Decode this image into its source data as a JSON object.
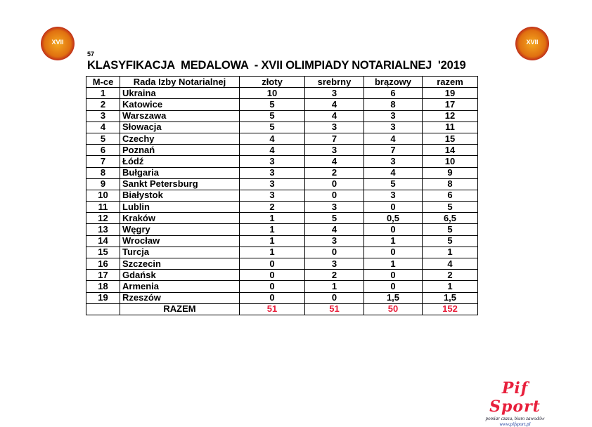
{
  "logo_text": "XVII",
  "page_number": "57",
  "title": "KLASYFIKACJA  MEDALOWA  - XVII OLIMPIADY NOTARIALNEJ  '2019",
  "headers": [
    "M-ce",
    "Rada Izby Notarialnej",
    "złoty",
    "srebrny",
    "brązowy",
    "razem"
  ],
  "rows": [
    [
      "1",
      "Ukraina",
      "10",
      "3",
      "6",
      "19"
    ],
    [
      "2",
      "Katowice",
      "5",
      "4",
      "8",
      "17"
    ],
    [
      "3",
      "Warszawa",
      "5",
      "4",
      "3",
      "12"
    ],
    [
      "4",
      "Słowacja",
      "5",
      "3",
      "3",
      "11"
    ],
    [
      "5",
      "Czechy",
      "4",
      "7",
      "4",
      "15"
    ],
    [
      "6",
      "Poznań",
      "4",
      "3",
      "7",
      "14"
    ],
    [
      "7",
      "Łódź",
      "3",
      "4",
      "3",
      "10"
    ],
    [
      "8",
      "Bułgaria",
      "3",
      "2",
      "4",
      "9"
    ],
    [
      "9",
      "Sankt Petersburg",
      "3",
      "0",
      "5",
      "8"
    ],
    [
      "10",
      "Białystok",
      "3",
      "0",
      "3",
      "6"
    ],
    [
      "11",
      "Lublin",
      "2",
      "3",
      "0",
      "5"
    ],
    [
      "12",
      "Kraków",
      "1",
      "5",
      "0,5",
      "6,5"
    ],
    [
      "13",
      "Węgry",
      "1",
      "4",
      "0",
      "5"
    ],
    [
      "14",
      "Wrocław",
      "1",
      "3",
      "1",
      "5"
    ],
    [
      "15",
      "Turcja",
      "1",
      "0",
      "0",
      "1"
    ],
    [
      "16",
      "Szczecin",
      "0",
      "3",
      "1",
      "4"
    ],
    [
      "17",
      "Gdańsk",
      "0",
      "2",
      "0",
      "2"
    ],
    [
      "18",
      "Armenia",
      "0",
      "1",
      "0",
      "1"
    ],
    [
      "19",
      "Rzeszów",
      "0",
      "0",
      "1,5",
      "1,5"
    ]
  ],
  "total": {
    "label": "RAZEM",
    "values": [
      "51",
      "51",
      "50",
      "152"
    ],
    "color": "#e8203c"
  },
  "footer": {
    "brand": "Pif Sport",
    "tagline": "pomiar czasu, biuro zawodów",
    "url": "www.pifsport.pl"
  }
}
